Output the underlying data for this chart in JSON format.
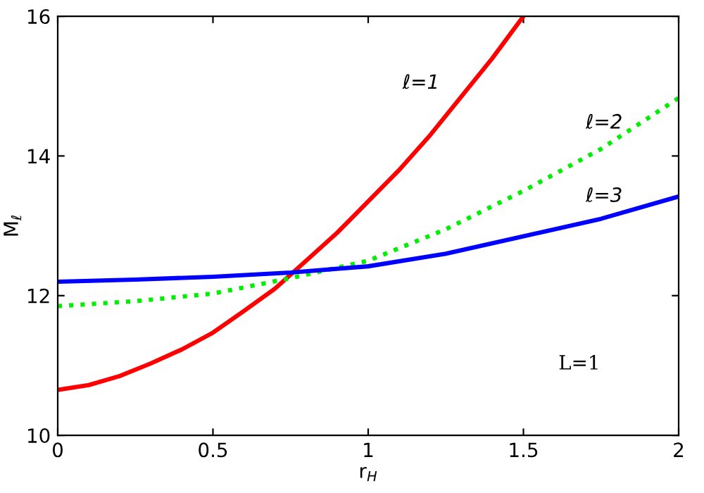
{
  "chart_data": {
    "type": "line",
    "xlabel": "r$_{H}$",
    "ylabel": "M$_{ℓ}$",
    "xlim": [
      0,
      2
    ],
    "ylim": [
      10,
      16
    ],
    "xticks": [
      0,
      0.5,
      1,
      1.5,
      2
    ],
    "yticks": [
      10,
      12,
      14,
      16
    ],
    "grid": false,
    "legend": false,
    "marker": "none",
    "series": [
      {
        "color": "#ff0000",
        "line_style": "solid",
        "x": [
          0,
          0.1,
          0.2,
          0.3,
          0.4,
          0.5,
          0.6,
          0.7,
          0.8,
          0.9,
          1.0,
          1.1,
          1.2,
          1.3,
          1.4,
          1.5
        ],
        "values": [
          10.65,
          10.72,
          10.85,
          11.03,
          11.23,
          11.47,
          11.78,
          12.1,
          12.5,
          12.9,
          13.35,
          13.8,
          14.3,
          14.85,
          15.4,
          16.0
        ]
      },
      {
        "color": "#00ee00",
        "line_style": "dotted",
        "x": [
          0,
          0.25,
          0.5,
          0.75,
          1.0,
          1.25,
          1.5,
          1.75,
          2.0
        ],
        "values": [
          11.85,
          11.92,
          12.03,
          12.25,
          12.5,
          12.95,
          13.5,
          14.1,
          14.83
        ]
      },
      {
        "color": "#0000ff",
        "line_style": "solid",
        "x": [
          0,
          0.25,
          0.5,
          0.75,
          1.0,
          1.25,
          1.5,
          1.75,
          2.0
        ],
        "values": [
          12.2,
          12.23,
          12.27,
          12.33,
          12.42,
          12.6,
          12.85,
          13.1,
          13.42
        ]
      }
    ],
    "annotations": [
      "ℓ=1",
      "ℓ=2",
      "ℓ=3",
      "L=1"
    ]
  }
}
